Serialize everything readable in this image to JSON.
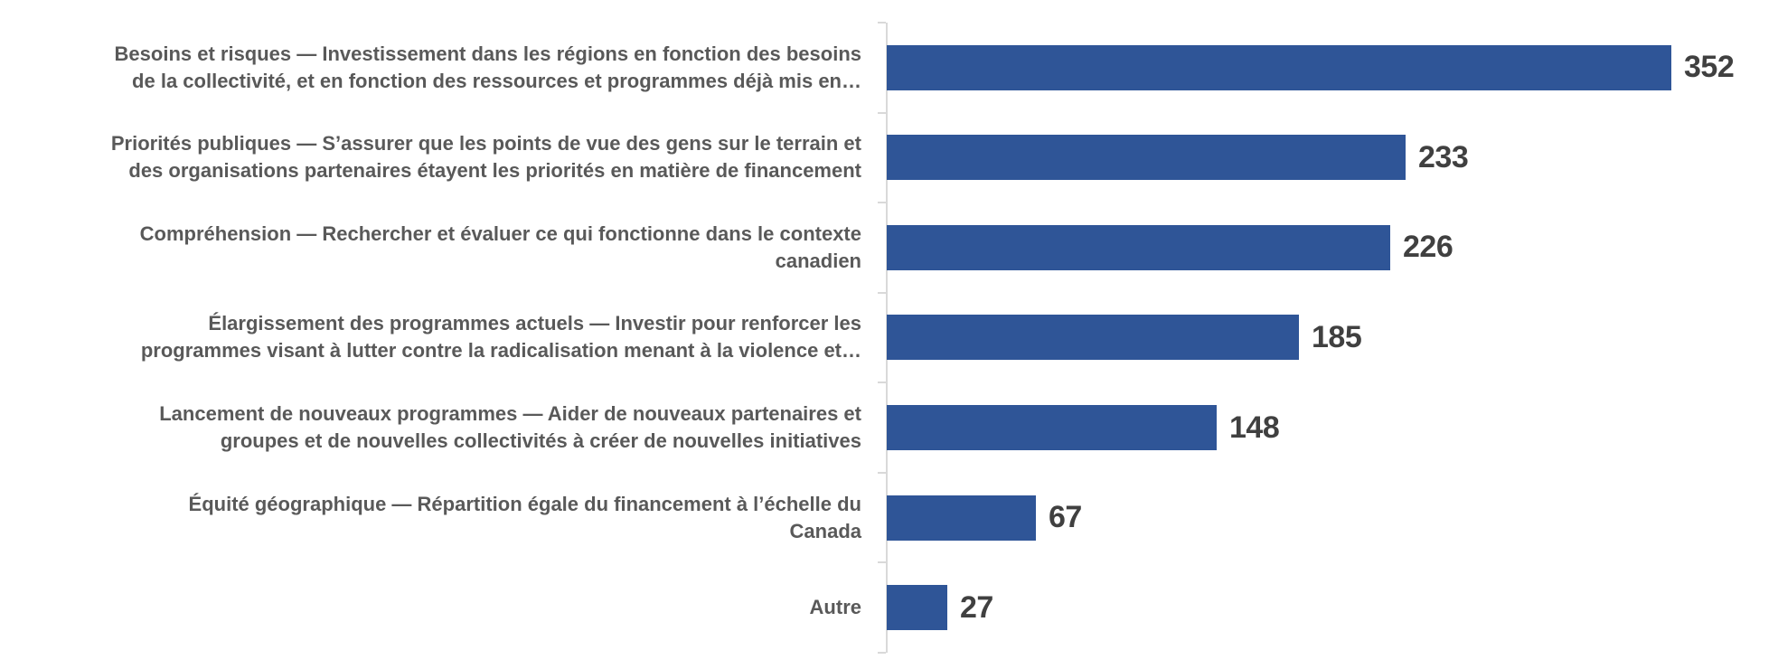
{
  "chart_data": {
    "type": "bar",
    "orientation": "horizontal",
    "title": "",
    "xlabel": "",
    "ylabel": "",
    "grid": false,
    "legend": false,
    "data_labels_shown": true,
    "xlim": [
      0,
      400
    ],
    "categories": [
      "Besoins et risques — Investissement dans les régions en fonction des besoins\nde la collectivité, et en fonction des ressources et programmes déjà mis en…",
      "Priorités publiques — S’assurer que les points de vue des gens sur le terrain et\ndes organisations partenaires étayent les priorités en matière de financement",
      "Compréhension — Rechercher et évaluer ce qui fonctionne dans le contexte\ncanadien",
      "Élargissement des programmes actuels — Investir pour renforcer les\nprogrammes visant à lutter contre la radicalisation menant à la violence et…",
      "Lancement de nouveaux programmes — Aider de nouveaux partenaires et\ngroupes et de nouvelles collectivités à créer de nouvelles initiatives",
      "Équité géographique — Répartition égale du financement à l’échelle du\nCanada",
      "Autre"
    ],
    "values": [
      352,
      233,
      226,
      185,
      148,
      67,
      27
    ],
    "colors": {
      "bar": "#2F5597",
      "category_label": "#595959",
      "value_label": "#404040",
      "axis_line": "#D9D9D9"
    }
  }
}
